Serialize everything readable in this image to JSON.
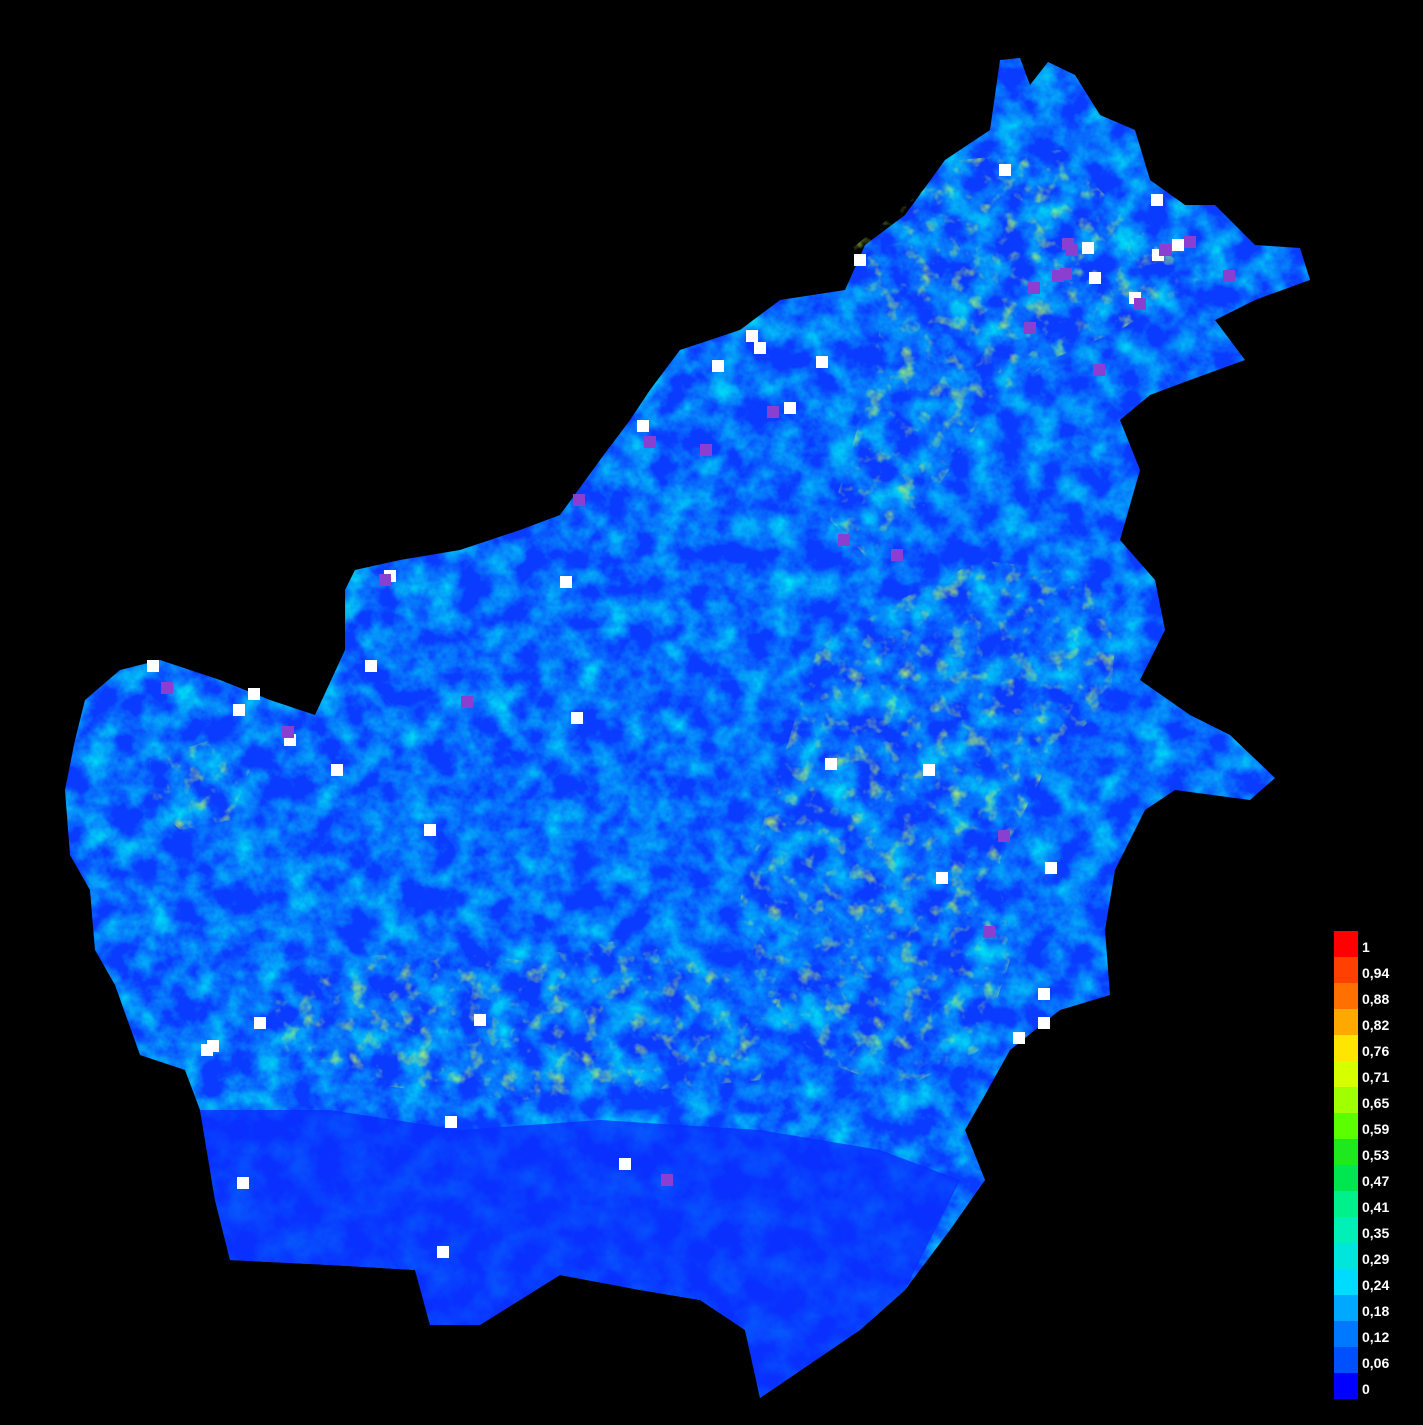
{
  "map": {
    "background": "#000000",
    "land_base_color": "#0a3cff",
    "marker_colors": {
      "white_marker": "#ffffff",
      "purple_marker": "#8a3fd1"
    }
  },
  "legend": {
    "entries": [
      {
        "label": "1",
        "value": 1.0,
        "color": "#ff0000"
      },
      {
        "label": "0,94",
        "value": 0.94,
        "color": "#ff4000"
      },
      {
        "label": "0,88",
        "value": 0.88,
        "color": "#ff7000"
      },
      {
        "label": "0,82",
        "value": 0.82,
        "color": "#ffa800"
      },
      {
        "label": "0,76",
        "value": 0.76,
        "color": "#ffe600"
      },
      {
        "label": "0,71",
        "value": 0.71,
        "color": "#d6ff00"
      },
      {
        "label": "0,65",
        "value": 0.65,
        "color": "#a0ff00"
      },
      {
        "label": "0,59",
        "value": 0.59,
        "color": "#5cff00"
      },
      {
        "label": "0,53",
        "value": 0.53,
        "color": "#1ee81e"
      },
      {
        "label": "0,47",
        "value": 0.47,
        "color": "#00e650"
      },
      {
        "label": "0,41",
        "value": 0.41,
        "color": "#00f08c"
      },
      {
        "label": "0,35",
        "value": 0.35,
        "color": "#00f0b8"
      },
      {
        "label": "0,29",
        "value": 0.29,
        "color": "#00e6dc"
      },
      {
        "label": "0,24",
        "value": 0.24,
        "color": "#00dcff"
      },
      {
        "label": "0,18",
        "value": 0.18,
        "color": "#00a8ff"
      },
      {
        "label": "0,12",
        "value": 0.12,
        "color": "#0078ff"
      },
      {
        "label": "0,06",
        "value": 0.06,
        "color": "#0050ff"
      },
      {
        "label": "0",
        "value": 0.0,
        "color": "#0000ff"
      }
    ]
  }
}
